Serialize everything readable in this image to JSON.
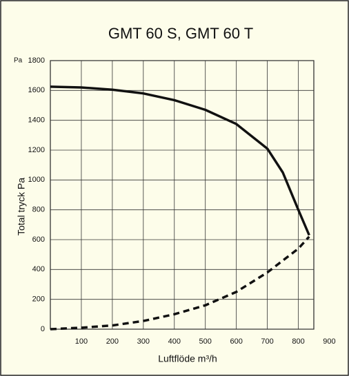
{
  "chart_data": {
    "type": "line",
    "title": "GMT 60 S,   GMT 60 T",
    "y_unit": "Pa",
    "ylabel": "Total tryck  Pa",
    "xlabel": "Luftflöde  m³/h",
    "xlim": [
      0,
      850
    ],
    "xticks": [
      100,
      200,
      300,
      400,
      500,
      600,
      700,
      800,
      900
    ],
    "ylim": [
      0,
      1800
    ],
    "yticks": [
      0,
      200,
      400,
      600,
      800,
      1000,
      1200,
      1400,
      1600,
      1800
    ],
    "grid": true,
    "series": [
      {
        "color": "#111111",
        "dashed": false,
        "x": [
          0,
          100,
          200,
          300,
          400,
          500,
          600,
          700,
          750,
          800,
          835
        ],
        "values": [
          1625,
          1620,
          1605,
          1580,
          1535,
          1470,
          1375,
          1210,
          1050,
          800,
          630
        ]
      },
      {
        "color": "#111111",
        "dashed": true,
        "x": [
          0,
          100,
          200,
          300,
          400,
          500,
          600,
          700,
          800,
          835
        ],
        "values": [
          0,
          10,
          25,
          55,
          100,
          160,
          250,
          380,
          540,
          620
        ]
      }
    ]
  }
}
